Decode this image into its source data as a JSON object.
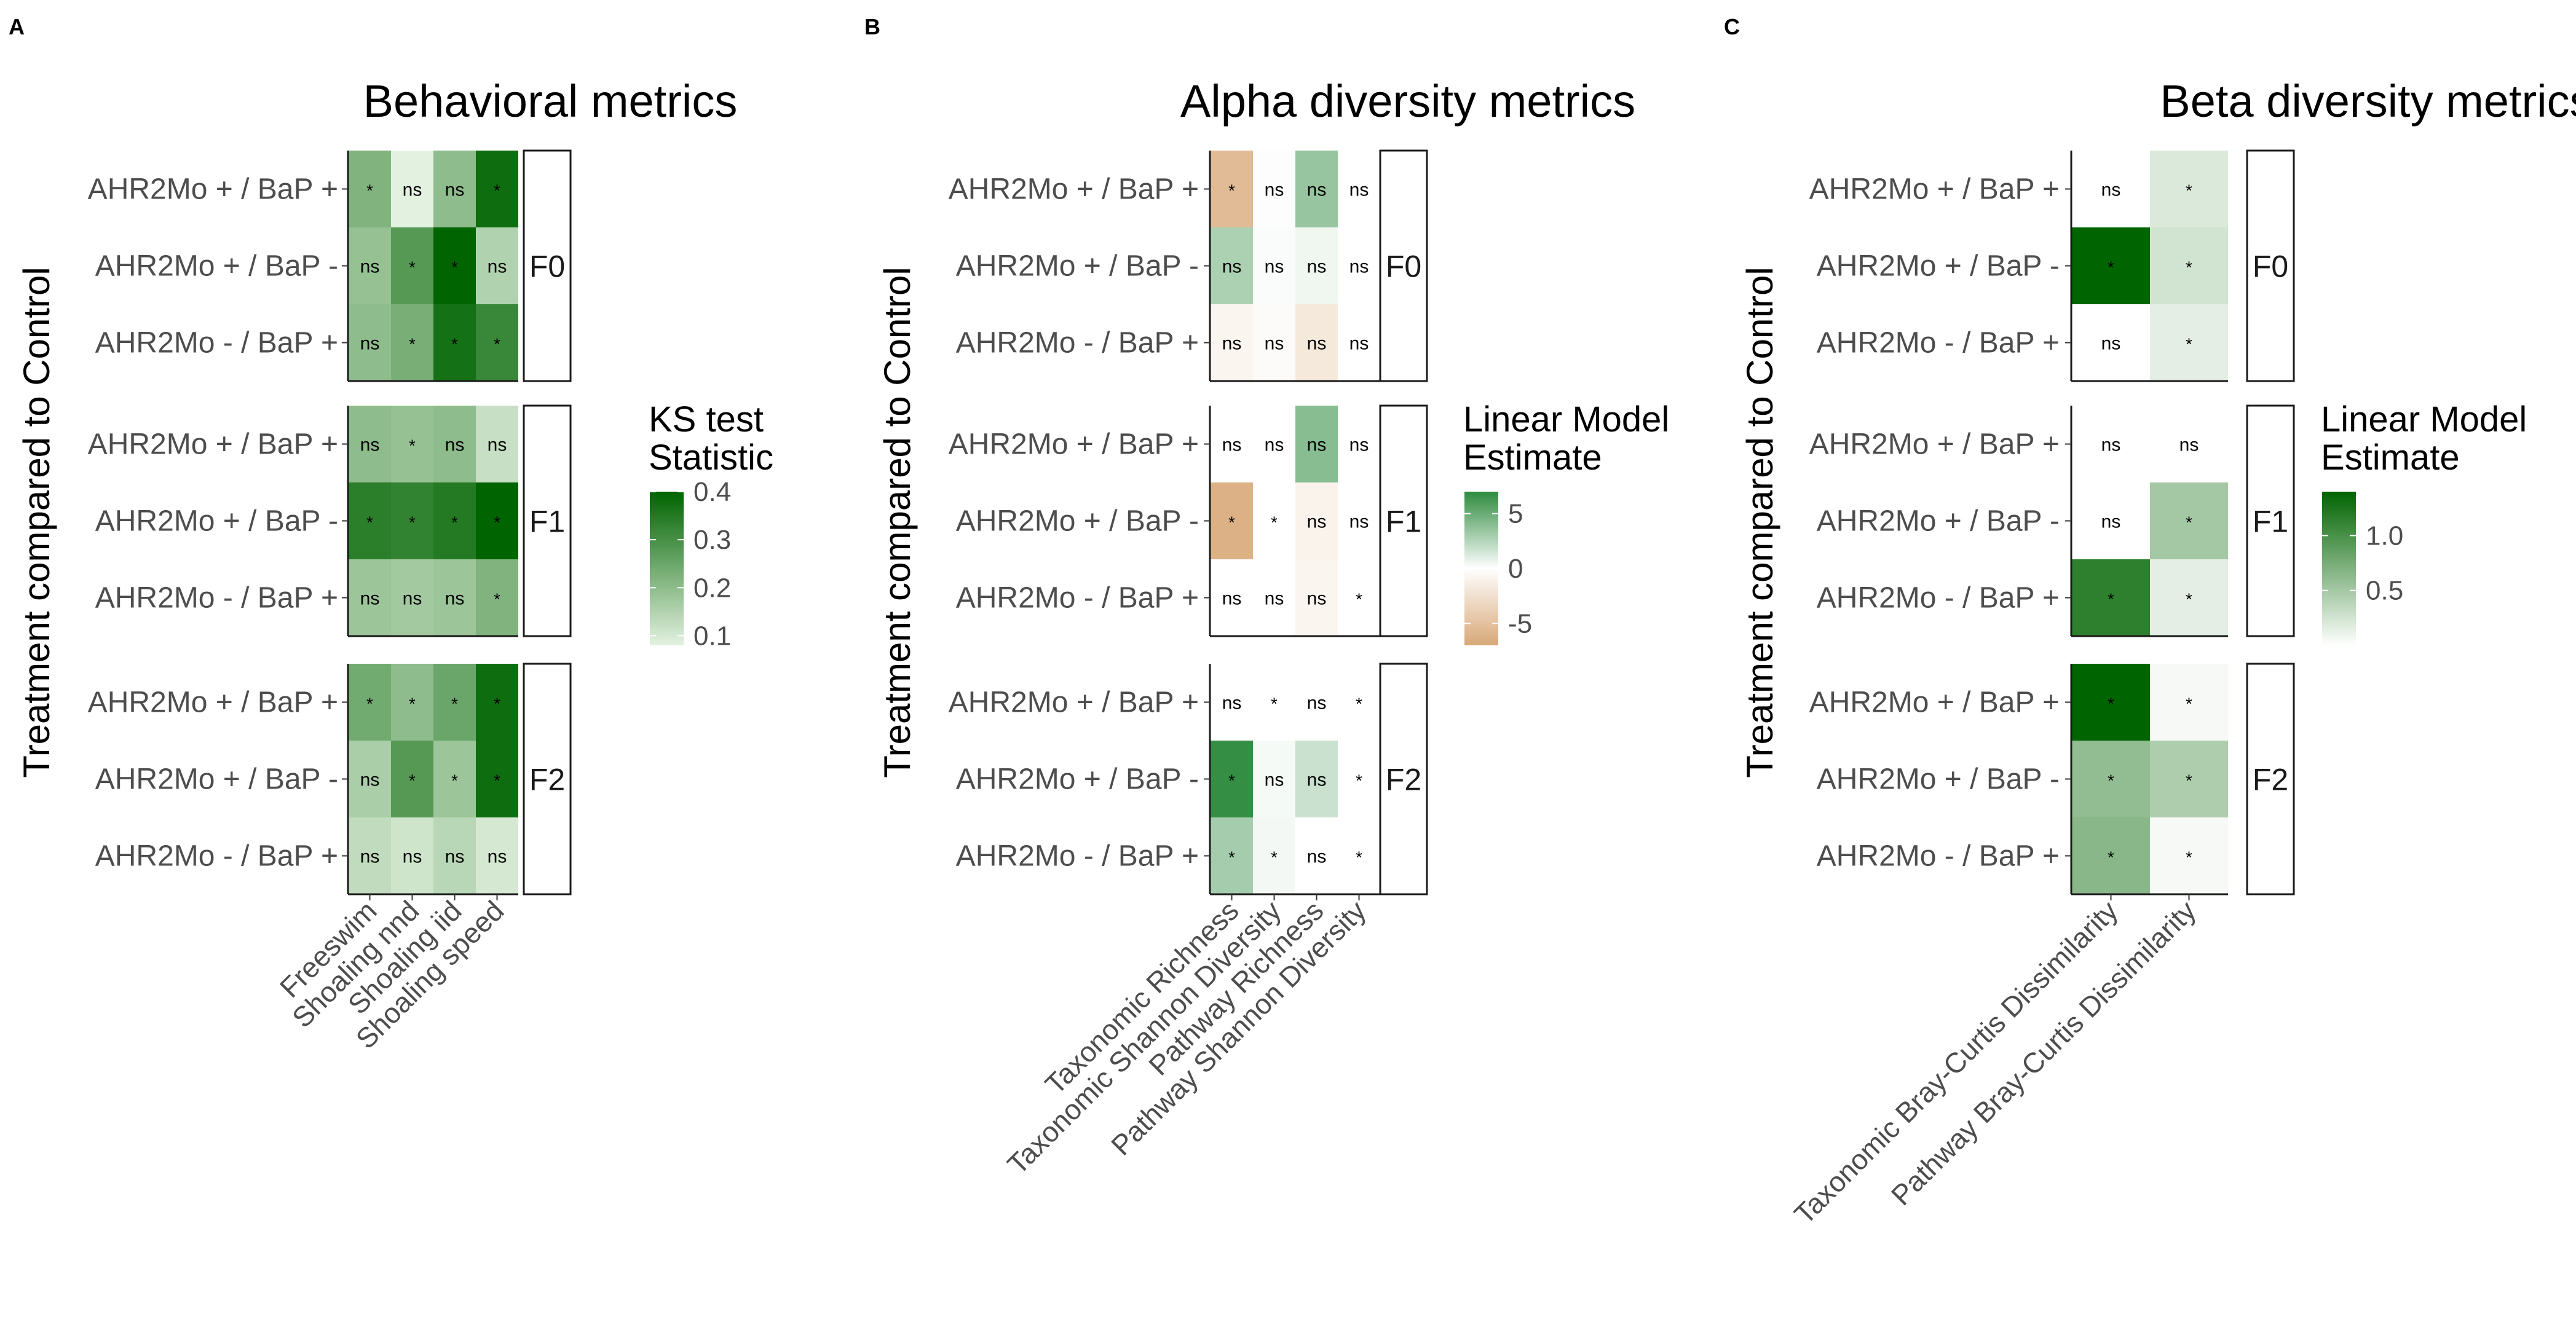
{
  "chart_data": [
    {
      "type": "heatmap",
      "panel_label": "A",
      "title": "Behavioral metrics",
      "ylabel": "Treatment compared to Control",
      "xlabel": "",
      "columns": [
        "Freeswim",
        "Shoaling nnd",
        "Shoaling iid",
        "Shoaling speed"
      ],
      "row_labels": [
        "AHR2Mo + / BaP +",
        "AHR2Mo + / BaP -",
        "AHR2Mo - / BaP +"
      ],
      "generations": [
        {
          "name": "F0",
          "values": [
            [
              0.22,
              0.08,
              0.2,
              0.38
            ],
            [
              0.19,
              0.28,
              0.4,
              0.15
            ],
            [
              0.2,
              0.23,
              0.37,
              0.32
            ]
          ],
          "labels": [
            [
              "*",
              "ns",
              "ns",
              "*"
            ],
            [
              "ns",
              "*",
              "*",
              "ns"
            ],
            [
              "ns",
              "*",
              "*",
              "*"
            ]
          ]
        },
        {
          "name": "F1",
          "values": [
            [
              0.2,
              0.19,
              0.2,
              0.12
            ],
            [
              0.34,
              0.33,
              0.35,
              0.4
            ],
            [
              0.18,
              0.17,
              0.18,
              0.22
            ]
          ],
          "labels": [
            [
              "ns",
              "*",
              "ns",
              "ns"
            ],
            [
              "*",
              "*",
              "*",
              "*"
            ],
            [
              "ns",
              "ns",
              "ns",
              "*"
            ]
          ]
        },
        {
          "name": "F2",
          "values": [
            [
              0.24,
              0.2,
              0.25,
              0.38
            ],
            [
              0.16,
              0.28,
              0.18,
              0.38
            ],
            [
              0.13,
              0.11,
              0.14,
              0.1
            ]
          ],
          "labels": [
            [
              "*",
              "*",
              "*",
              "*"
            ],
            [
              "ns",
              "*",
              "*",
              "*"
            ],
            [
              "ns",
              "ns",
              "ns",
              "ns"
            ]
          ]
        }
      ],
      "legend": {
        "title_lines": [
          "KS test",
          "Statistic"
        ],
        "range": [
          0.08,
          0.4
        ],
        "ticks": [
          0.4,
          0.3,
          0.2,
          0.1
        ],
        "tick_labels": [
          "0.4",
          "0.3",
          "0.2",
          "0.1"
        ],
        "low_color": "#e3f1e0",
        "high_color": "#006400"
      }
    },
    {
      "type": "heatmap",
      "panel_label": "B",
      "title": "Alpha diversity metrics",
      "ylabel": "Treatment compared to Control",
      "xlabel": "",
      "columns": [
        "Taxonomic Richness",
        "Taxonomic Shannon Diversity",
        "Pathway Richness",
        "Pathway Shannon Diversity"
      ],
      "row_labels": [
        "AHR2Mo + / BaP +",
        "AHR2Mo + / BaP -",
        "AHR2Mo - / BaP +"
      ],
      "generations": [
        {
          "name": "F0",
          "values": [
            [
              -5.5,
              0.1,
              3.5,
              0
            ],
            [
              2.8,
              0.2,
              0.5,
              0
            ],
            [
              -0.8,
              -0.3,
              -1.8,
              0
            ]
          ],
          "labels": [
            [
              "*",
              "ns",
              "ns",
              "ns"
            ],
            [
              "ns",
              "ns",
              "ns",
              "ns"
            ],
            [
              "ns",
              "ns",
              "ns",
              "ns"
            ]
          ]
        },
        {
          "name": "F1",
          "values": [
            [
              0,
              0,
              4.0,
              0
            ],
            [
              -6.3,
              0,
              -1.0,
              0
            ],
            [
              0,
              0,
              -0.8,
              0
            ]
          ],
          "labels": [
            [
              "ns",
              "ns",
              "ns",
              "ns"
            ],
            [
              "*",
              "*",
              "ns",
              "ns"
            ],
            [
              "ns",
              "ns",
              "ns",
              "*"
            ]
          ]
        },
        {
          "name": "F2",
          "values": [
            [
              0,
              0,
              0,
              0
            ],
            [
              6.8,
              0.3,
              1.8,
              0
            ],
            [
              3.0,
              0.4,
              0,
              0
            ]
          ],
          "labels": [
            [
              "ns",
              "*",
              "ns",
              "*"
            ],
            [
              "*",
              "ns",
              "ns",
              "*"
            ],
            [
              "*",
              "*",
              "ns",
              "*"
            ]
          ]
        }
      ],
      "legend": {
        "title_lines": [
          "Linear Model",
          "Estimate"
        ],
        "range": [
          -7,
          7
        ],
        "ticks": [
          5,
          0,
          -5
        ],
        "tick_labels": [
          "5",
          "0",
          "-5"
        ],
        "low_color": "#d8a878",
        "mid_color": "#ffffff",
        "high_color": "#2e8b3f"
      }
    },
    {
      "type": "heatmap",
      "panel_label": "C",
      "title": "Beta diversity metrics",
      "ylabel": "Treatment compared to Control",
      "xlabel": "",
      "columns": [
        "Taxonomic Bray-Curtis Dissimilarity",
        "Pathway Bray-Curtis Dissimilarity"
      ],
      "row_labels": [
        "AHR2Mo + / BaP +",
        "AHR2Mo + / BaP -",
        "AHR2Mo - / BaP +"
      ],
      "generations": [
        {
          "name": "F0",
          "values": [
            [
              0.0,
              0.2
            ],
            [
              1.4,
              0.25
            ],
            [
              0.0,
              0.15
            ]
          ],
          "labels": [
            [
              "ns",
              "*"
            ],
            [
              "*",
              "*"
            ],
            [
              "ns",
              "*"
            ]
          ]
        },
        {
          "name": "F1",
          "values": [
            [
              0.0,
              0.0
            ],
            [
              0.0,
              0.5
            ],
            [
              1.15,
              0.15
            ]
          ],
          "labels": [
            [
              "ns",
              "ns"
            ],
            [
              "ns",
              "*"
            ],
            [
              "*",
              "*"
            ]
          ]
        },
        {
          "name": "F2",
          "values": [
            [
              1.4,
              0.05
            ],
            [
              0.6,
              0.45
            ],
            [
              0.65,
              0.05
            ]
          ],
          "labels": [
            [
              "*",
              "*"
            ],
            [
              "*",
              "*"
            ],
            [
              "*",
              "*"
            ]
          ]
        }
      ],
      "legend": {
        "title_lines": [
          "Linear Model",
          "Estimate"
        ],
        "range": [
          0,
          1.4
        ],
        "ticks": [
          1.0,
          0.5
        ],
        "tick_labels": [
          "1.0",
          "0.5"
        ],
        "low_color": "#ffffff",
        "high_color": "#006400"
      }
    }
  ]
}
